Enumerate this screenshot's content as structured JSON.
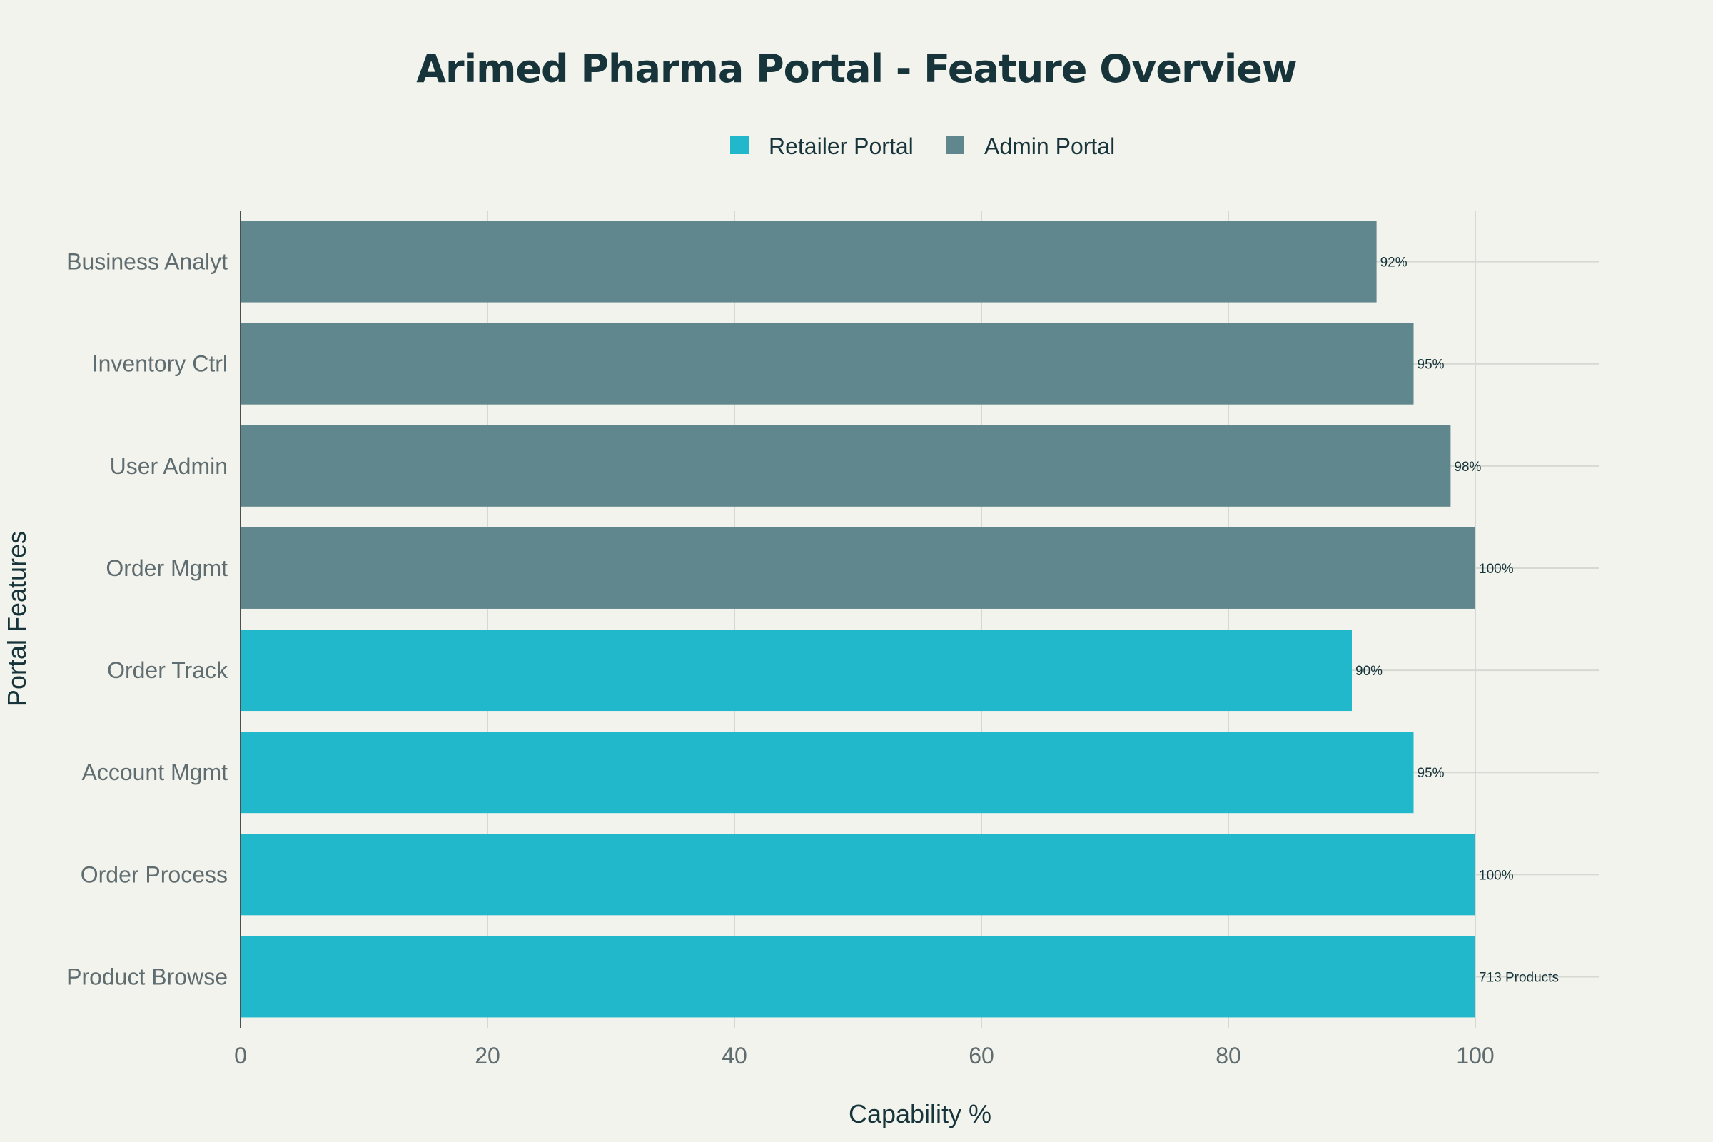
{
  "chart_data": {
    "type": "bar",
    "orientation": "horizontal",
    "title": "Arimed Pharma Portal - Feature Overview",
    "xlabel": "Capability %",
    "ylabel": "Portal Features",
    "xlim": [
      0,
      110
    ],
    "xticks": [
      0,
      20,
      40,
      60,
      80,
      100
    ],
    "grid": true,
    "legend_position": "top-center",
    "categories": [
      "Product Browse",
      "Order Process",
      "Account Mgmt",
      "Order Track",
      "Order Mgmt",
      "User Admin",
      "Inventory Ctrl",
      "Business Analyt"
    ],
    "series": [
      {
        "name": "Retailer Portal",
        "color": "#21b8cc",
        "points": [
          {
            "category": "Product Browse",
            "value": 100,
            "label": "713 Products"
          },
          {
            "category": "Order Process",
            "value": 100,
            "label": "100%"
          },
          {
            "category": "Account Mgmt",
            "value": 95,
            "label": "95%"
          },
          {
            "category": "Order Track",
            "value": 90,
            "label": "90%"
          }
        ]
      },
      {
        "name": "Admin Portal",
        "color": "#5f878d",
        "points": [
          {
            "category": "Order Mgmt",
            "value": 100,
            "label": "100%"
          },
          {
            "category": "User Admin",
            "value": 98,
            "label": "98%"
          },
          {
            "category": "Inventory Ctrl",
            "value": 95,
            "label": "95%"
          },
          {
            "category": "Business Analyt",
            "value": 92,
            "label": "92%"
          }
        ]
      }
    ]
  }
}
